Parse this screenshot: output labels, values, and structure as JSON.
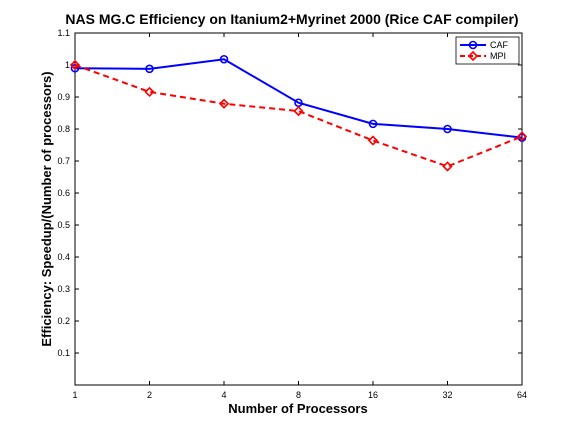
{
  "chart_data": {
    "type": "line",
    "title": "NAS MG.C Efficiency on Itanium2+Myrinet 2000 (Rice CAF compiler)",
    "xlabel": "Number of Processors",
    "ylabel": "Efficiency: Speedup/(Number of processors)",
    "categories": [
      "1",
      "2",
      "4",
      "8",
      "16",
      "32",
      "64"
    ],
    "y_ticks": [
      "0.1",
      "0.2",
      "0.3",
      "0.4",
      "0.5",
      "0.6",
      "0.7",
      "0.8",
      "0.9",
      "1",
      "1.1"
    ],
    "ylim": [
      0,
      1.1
    ],
    "grid": false,
    "legend_position": "top-right",
    "series": [
      {
        "name": "CAF",
        "color": "#0000ff",
        "line_style": "solid",
        "marker": "circle",
        "values": [
          0.99,
          0.988,
          1.018,
          0.882,
          0.816,
          0.8,
          0.773
        ]
      },
      {
        "name": "MPI",
        "color": "#ff0000",
        "line_style": "dashed",
        "marker": "diamond",
        "values": [
          1.0,
          0.916,
          0.879,
          0.856,
          0.764,
          0.683,
          0.777
        ]
      }
    ]
  }
}
